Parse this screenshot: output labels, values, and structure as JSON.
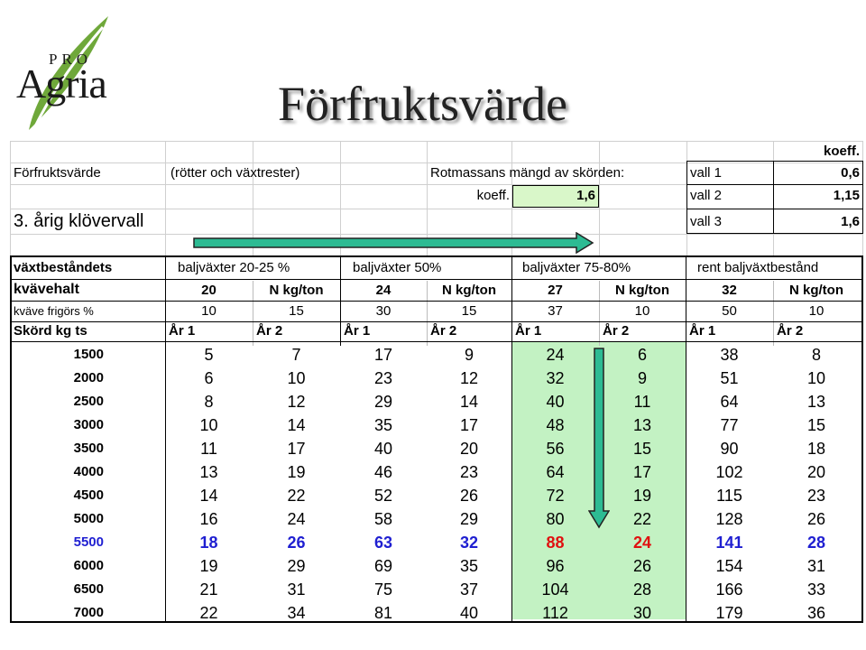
{
  "logo": {
    "top_text": "PRO",
    "main_text": "Agria"
  },
  "title": "Förfruktsvärde",
  "info": {
    "koeff_header": "koeff.",
    "row1_label": "Förfruktsvärde",
    "row1_sub": "(rötter och växtrester)",
    "row1_mass": "Rotmassans mängd av skörden:",
    "row2_koeff_label": "koeff.",
    "row2_koeff_value": "1,6",
    "row3_label": "3. årig klövervall",
    "valls": [
      {
        "label": "vall 1",
        "value": "0,6"
      },
      {
        "label": "vall 2",
        "value": "1,15"
      },
      {
        "label": "vall 3",
        "value": "1,6"
      }
    ]
  },
  "table": {
    "row_labels": [
      "växtbeståndets",
      "kvävehalt",
      "kväve frigörs %",
      "Skörd kg ts"
    ],
    "groups": [
      "baljväxter 20-25 %",
      "baljväxter 50%",
      "baljväxter 75-80%",
      "rent baljväxtbestånd"
    ],
    "kvavehalt": [
      {
        "value": "20",
        "unit": "N kg/ton"
      },
      {
        "value": "24",
        "unit": "N kg/ton"
      },
      {
        "value": "27",
        "unit": "N kg/ton"
      },
      {
        "value": "32",
        "unit": "N kg/ton"
      }
    ],
    "frigors": [
      "10",
      "15",
      "30",
      "15",
      "37",
      "10",
      "50",
      "10"
    ],
    "years": [
      "År 1",
      "År 2",
      "År 1",
      "År 2",
      "År 1",
      "År 2",
      "År 1",
      "År 2"
    ],
    "rows": [
      {
        "skord": "1500",
        "vals": [
          "5",
          "7",
          "17",
          "9",
          "24",
          "6",
          "38",
          "8"
        ]
      },
      {
        "skord": "2000",
        "vals": [
          "6",
          "10",
          "23",
          "12",
          "32",
          "9",
          "51",
          "10"
        ]
      },
      {
        "skord": "2500",
        "vals": [
          "8",
          "12",
          "29",
          "14",
          "40",
          "11",
          "64",
          "13"
        ]
      },
      {
        "skord": "3000",
        "vals": [
          "10",
          "14",
          "35",
          "17",
          "48",
          "13",
          "77",
          "15"
        ]
      },
      {
        "skord": "3500",
        "vals": [
          "11",
          "17",
          "40",
          "20",
          "56",
          "15",
          "90",
          "18"
        ]
      },
      {
        "skord": "4000",
        "vals": [
          "13",
          "19",
          "46",
          "23",
          "64",
          "17",
          "102",
          "20"
        ]
      },
      {
        "skord": "4500",
        "vals": [
          "14",
          "22",
          "52",
          "26",
          "72",
          "19",
          "115",
          "23"
        ]
      },
      {
        "skord": "5000",
        "vals": [
          "16",
          "24",
          "58",
          "29",
          "80",
          "22",
          "128",
          "26"
        ]
      },
      {
        "skord": "5500",
        "vals": [
          "18",
          "26",
          "63",
          "32",
          "88",
          "24",
          "141",
          "28"
        ],
        "highlight": true
      },
      {
        "skord": "6000",
        "vals": [
          "19",
          "29",
          "69",
          "35",
          "96",
          "26",
          "154",
          "31"
        ]
      },
      {
        "skord": "6500",
        "vals": [
          "21",
          "31",
          "75",
          "37",
          "104",
          "28",
          "166",
          "33"
        ]
      },
      {
        "skord": "7000",
        "vals": [
          "22",
          "34",
          "81",
          "40",
          "112",
          "30",
          "179",
          "36"
        ]
      }
    ]
  },
  "colors": {
    "koeff_fill": "#d9f7c9",
    "column_highlight_fill": "#c3f2c3",
    "arrow_fill": "#2dbb93",
    "arrow_border": "#222222",
    "highlight_blue": "#1f1fd1",
    "highlight_red": "#e01010",
    "leaf_green": "#6fa83a"
  },
  "icons": [
    "leaf-logo-icon",
    "right-arrow-icon",
    "down-arrow-icon"
  ]
}
